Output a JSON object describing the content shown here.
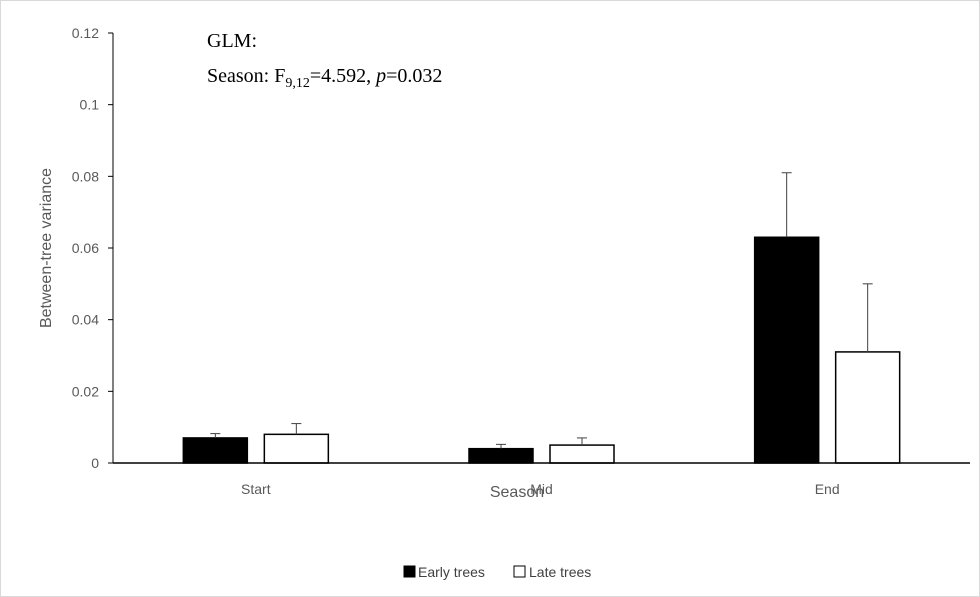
{
  "chart_data": {
    "type": "bar",
    "title": "",
    "xlabel": "Season",
    "ylabel": "Between-tree variance",
    "categories": [
      "Start",
      "Mid",
      "End"
    ],
    "ylim": [
      0,
      0.12
    ],
    "yticks": [
      0,
      0.02,
      0.04,
      0.06,
      0.08,
      0.1,
      0.12
    ],
    "ytick_labels": [
      "0",
      "0.02",
      "0.04",
      "0.06",
      "0.08",
      "0.1",
      "0.12"
    ],
    "grid": false,
    "legend_position": "bottom",
    "series": [
      {
        "name": "Early trees",
        "values": [
          0.007,
          0.004,
          0.063
        ],
        "errors": [
          0.0012,
          0.0012,
          0.018
        ],
        "fill": "#000000"
      },
      {
        "name": "Late trees",
        "values": [
          0.008,
          0.005,
          0.031
        ],
        "errors": [
          0.003,
          0.002,
          0.019
        ],
        "fill": "#ffffff"
      }
    ],
    "annotation": {
      "line1": "GLM:",
      "line2_prefix": "Season: F",
      "line2_subscript": "9,12",
      "line2_mid": "=4.592, ",
      "line2_p": "p",
      "line2_suffix": "=0.032"
    }
  }
}
